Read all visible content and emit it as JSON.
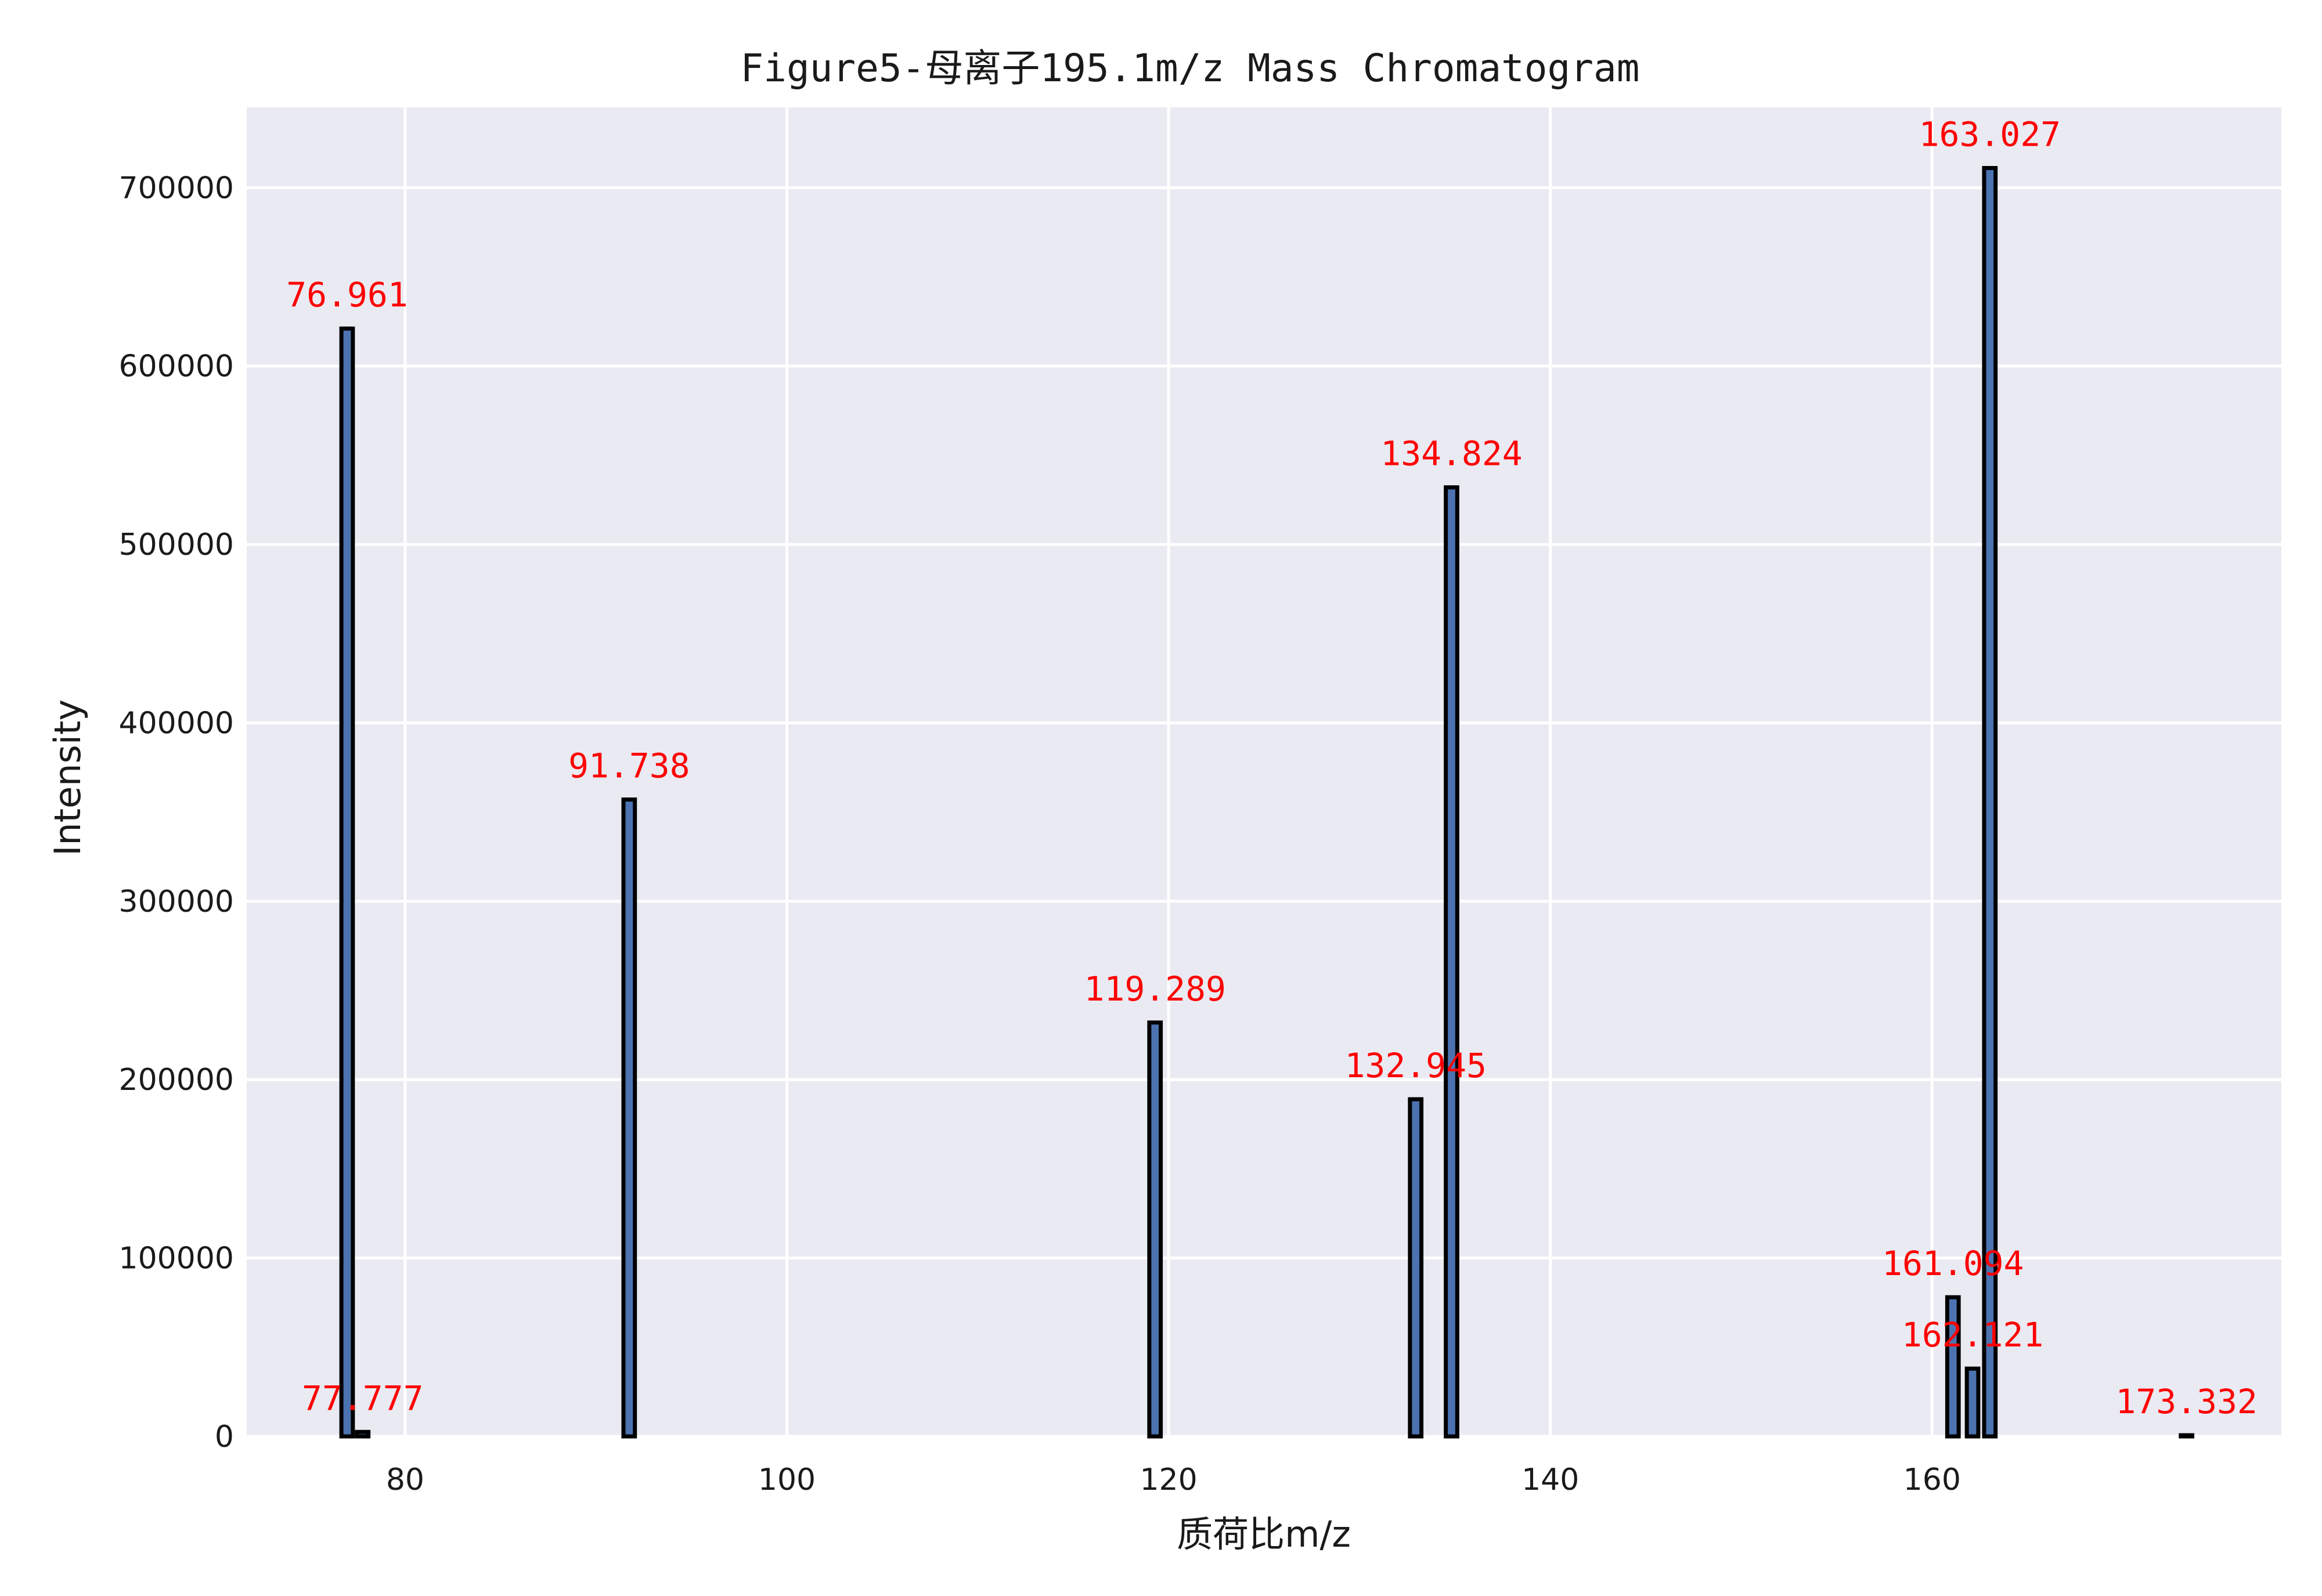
{
  "chart_data": {
    "type": "bar",
    "title": "Figure5-母离子195.1m/z Mass Chromatogram",
    "xlabel": "质荷比m/z",
    "ylabel": "Intensity",
    "xlim": [
      71.7,
      178.3
    ],
    "ylim": [
      0,
      745000
    ],
    "xticks": [
      80,
      100,
      120,
      140,
      160
    ],
    "yticks": [
      0,
      100000,
      200000,
      300000,
      400000,
      500000,
      600000,
      700000
    ],
    "grid": true,
    "legend": "none",
    "bar_width_mz": 0.6,
    "peaks": [
      {
        "mz": 76.961,
        "intensity": 621000,
        "label": "76.961"
      },
      {
        "mz": 77.777,
        "intensity": 2500,
        "label": "77.777"
      },
      {
        "mz": 91.738,
        "intensity": 357000,
        "label": "91.738"
      },
      {
        "mz": 119.289,
        "intensity": 232000,
        "label": "119.289"
      },
      {
        "mz": 132.945,
        "intensity": 189000,
        "label": "132.945"
      },
      {
        "mz": 134.824,
        "intensity": 532000,
        "label": "134.824"
      },
      {
        "mz": 161.094,
        "intensity": 78000,
        "label": "161.094"
      },
      {
        "mz": 162.121,
        "intensity": 38000,
        "label": "162.121"
      },
      {
        "mz": 163.027,
        "intensity": 711000,
        "label": "163.027"
      },
      {
        "mz": 173.332,
        "intensity": 600,
        "label": "173.332"
      }
    ]
  },
  "colors": {
    "plot_background": "#eaeaf2",
    "grid": "#ffffff",
    "bar_fill": "#4c72b0",
    "bar_edge": "#000000",
    "label": "#ff0000",
    "text": "#1a1a1a"
  }
}
